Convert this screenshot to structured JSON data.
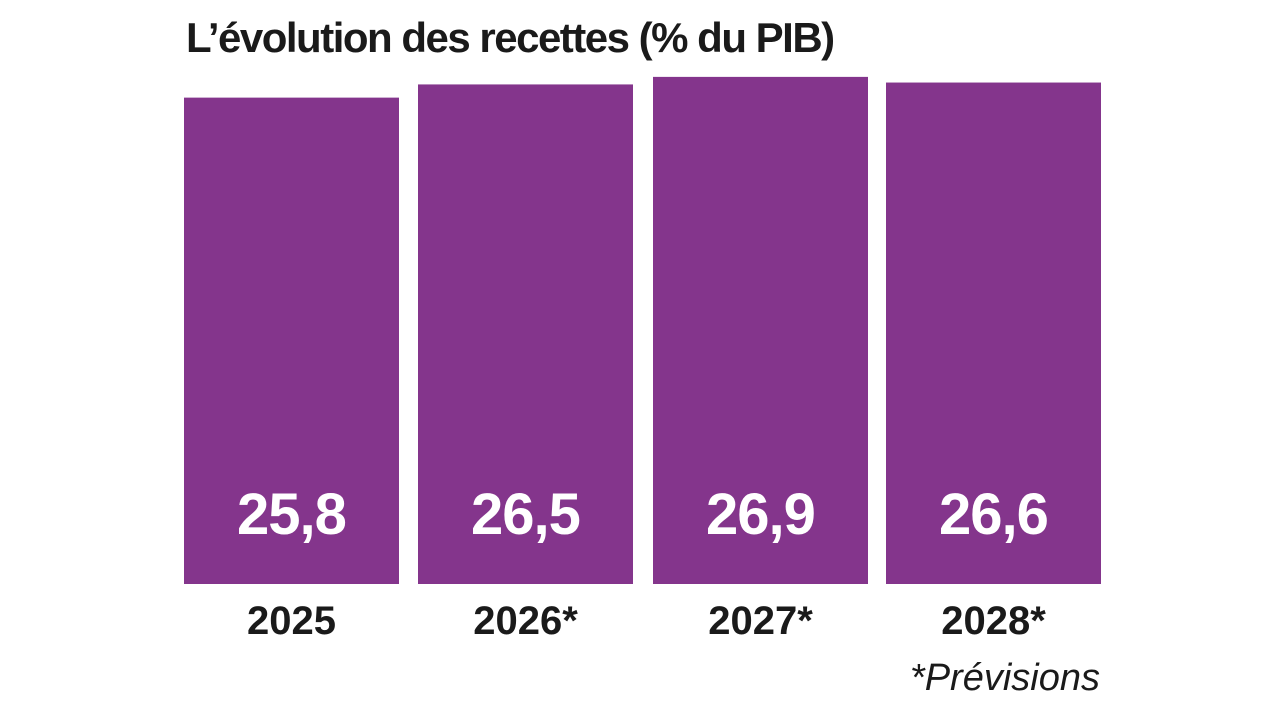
{
  "chart_data": {
    "type": "bar",
    "title": "L’évolution des recettes (% du PIB)",
    "categories": [
      "2025",
      "2026*",
      "2027*",
      "2028*"
    ],
    "values": [
      25.8,
      26.5,
      26.9,
      26.6
    ],
    "value_labels": [
      "25,8",
      "26,5",
      "26,9",
      "26,6"
    ],
    "xlabel": "",
    "ylabel": "",
    "ylim": [
      0,
      27
    ],
    "grid": false,
    "legend": "none",
    "bar_color": "#84358c",
    "footnote": "*Prévisions"
  }
}
